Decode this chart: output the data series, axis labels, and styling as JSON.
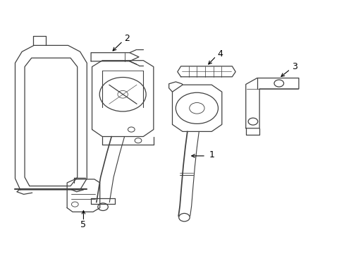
{
  "background_color": "#ffffff",
  "fig_width": 4.89,
  "fig_height": 3.6,
  "dpi": 100,
  "line_color": "#404040",
  "label_color": "#000000"
}
